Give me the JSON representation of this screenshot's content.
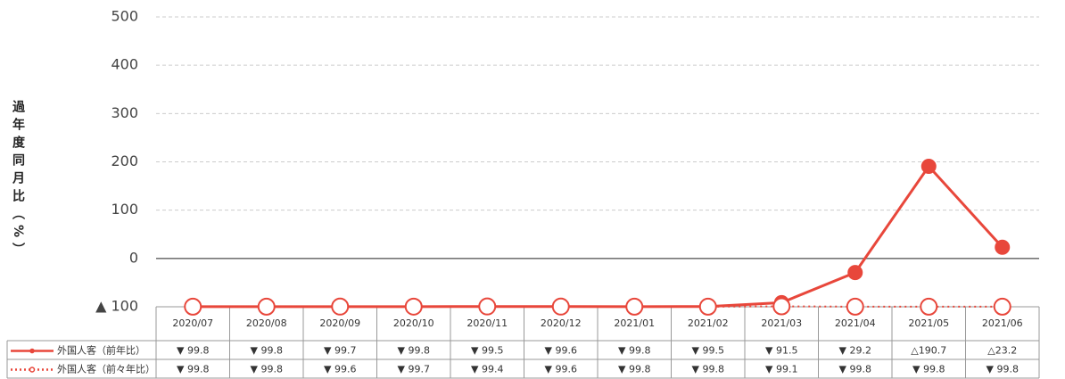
{
  "chart_data": {
    "type": "line",
    "y_label": "過年度同月比（%）",
    "categories": [
      "2020/07",
      "2020/08",
      "2020/09",
      "2020/10",
      "2020/11",
      "2020/12",
      "2021/01",
      "2021/02",
      "2021/03",
      "2021/04",
      "2021/05",
      "2021/06"
    ],
    "ylim": [
      -100,
      500
    ],
    "yticks": [
      {
        "value": -100,
        "label": "▲ 100"
      },
      0,
      100,
      200,
      300,
      400,
      500
    ],
    "grid": true,
    "series": [
      {
        "name": "外国人客（前年比）",
        "color": "#e8473b",
        "style": "solid",
        "marker": "filled",
        "values": [
          -99.8,
          -99.8,
          -99.7,
          -99.8,
          -99.5,
          -99.6,
          -99.8,
          -99.5,
          -91.5,
          -29.2,
          190.7,
          23.2
        ],
        "value_labels": [
          "▼ 99.8",
          "▼ 99.8",
          "▼ 99.7",
          "▼ 99.8",
          "▼ 99.5",
          "▼ 99.6",
          "▼ 99.8",
          "▼ 99.5",
          "▼ 91.5",
          "▼ 29.2",
          "△190.7",
          "△23.2"
        ]
      },
      {
        "name": "外国人客（前々年比）",
        "color": "#e8473b",
        "style": "dotted",
        "marker": "open",
        "values": [
          -99.8,
          -99.8,
          -99.6,
          -99.7,
          -99.4,
          -99.6,
          -99.8,
          -99.8,
          -99.1,
          -99.8,
          -99.8,
          -99.8
        ],
        "value_labels": [
          "▼ 99.8",
          "▼ 99.8",
          "▼ 99.6",
          "▼ 99.7",
          "▼ 99.4",
          "▼ 99.6",
          "▼ 99.8",
          "▼ 99.8",
          "▼ 99.1",
          "▼ 99.8",
          "▼ 99.8",
          "▼ 99.8"
        ]
      }
    ]
  }
}
